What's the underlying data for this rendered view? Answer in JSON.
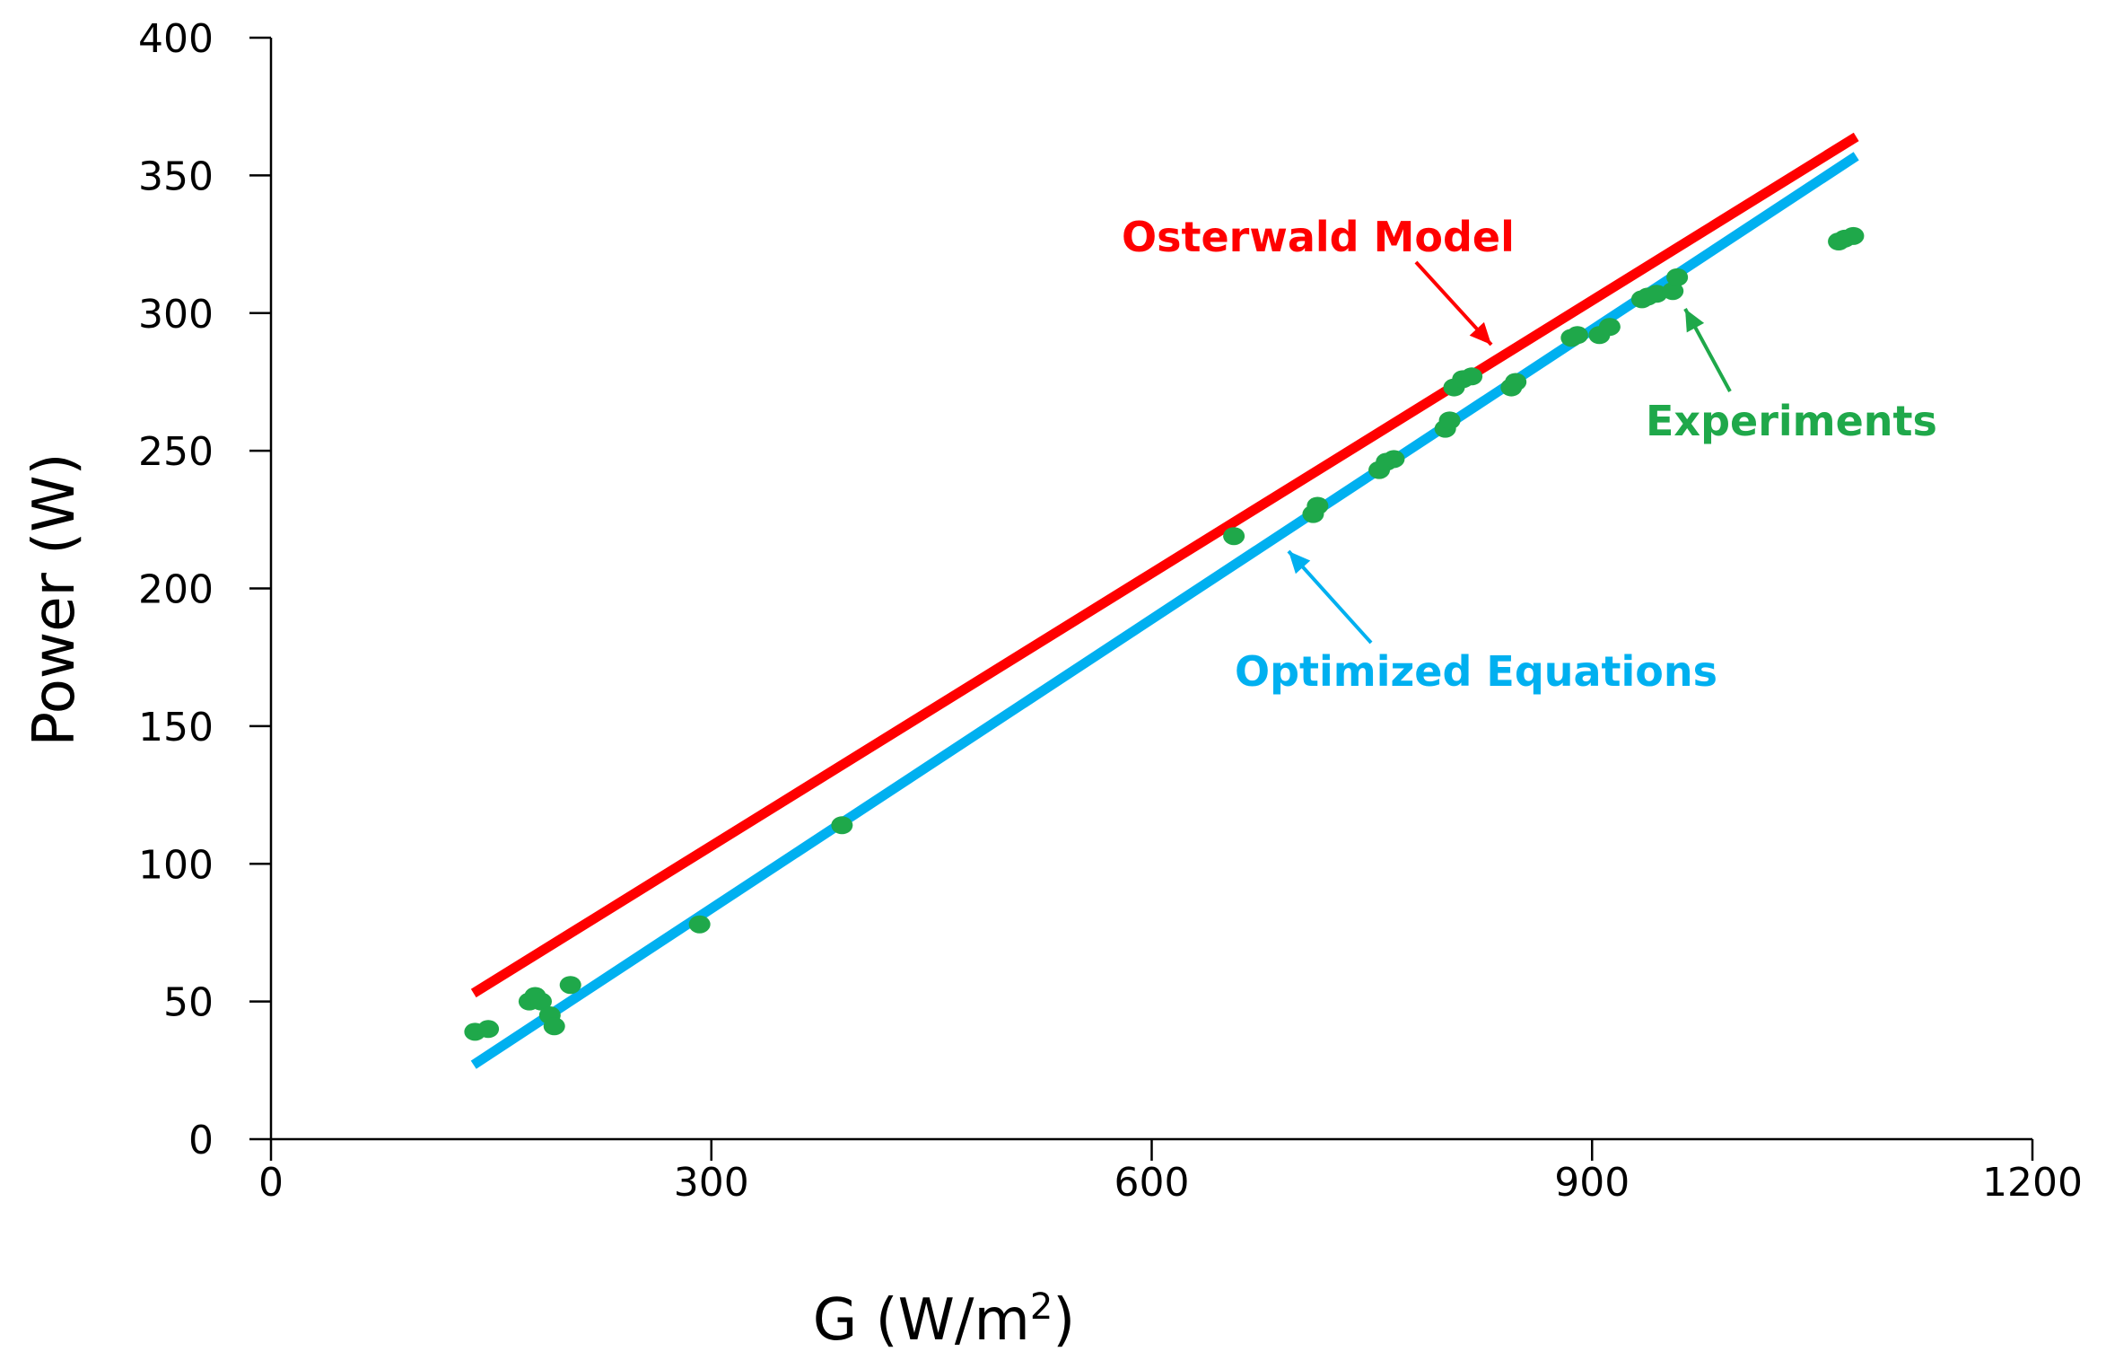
{
  "chart_data": {
    "type": "scatter",
    "title": "",
    "xlabel": "G (W/m",
    "xlabel_sup": "2",
    "xlabel_suffix": ")",
    "ylabel": "Power (W)",
    "xlim": [
      0,
      1200
    ],
    "ylim": [
      0,
      400
    ],
    "x_ticks": [
      0,
      300,
      600,
      900,
      1200
    ],
    "y_ticks": [
      0,
      50,
      100,
      150,
      200,
      250,
      300,
      350,
      400
    ],
    "x_tick_labels": [
      "0",
      "300",
      "600",
      "900",
      "1200"
    ],
    "y_tick_labels": [
      "0",
      "50",
      "100",
      "150",
      "200",
      "250",
      "300",
      "350",
      "400"
    ],
    "grid": false,
    "series": [
      {
        "name": "Osterwald Model",
        "kind": "line",
        "color": "#ff0000",
        "points": [
          [
            138,
            53
          ],
          [
            1080,
            364
          ]
        ]
      },
      {
        "name": "Optimized Equations",
        "kind": "line",
        "color": "#00b0f0",
        "points": [
          [
            138,
            27
          ],
          [
            1080,
            357
          ]
        ]
      },
      {
        "name": "Experiments",
        "kind": "scatter",
        "color": "#1fa84a",
        "points": [
          [
            139,
            39
          ],
          [
            148,
            40
          ],
          [
            176,
            50
          ],
          [
            180,
            52
          ],
          [
            184,
            50
          ],
          [
            190,
            45
          ],
          [
            193,
            41
          ],
          [
            204,
            56
          ],
          [
            292,
            78
          ],
          [
            389,
            114
          ],
          [
            656,
            219
          ],
          [
            710,
            227
          ],
          [
            713,
            230
          ],
          [
            755,
            243
          ],
          [
            760,
            246
          ],
          [
            765,
            247
          ],
          [
            800,
            258
          ],
          [
            803,
            261
          ],
          [
            806,
            273
          ],
          [
            812,
            276
          ],
          [
            818,
            277
          ],
          [
            845,
            273
          ],
          [
            848,
            275
          ],
          [
            886,
            291
          ],
          [
            890,
            292
          ],
          [
            905,
            292
          ],
          [
            912,
            295
          ],
          [
            934,
            305
          ],
          [
            938,
            306
          ],
          [
            944,
            307
          ],
          [
            955,
            308
          ],
          [
            958,
            313
          ],
          [
            1068,
            326
          ],
          [
            1072,
            327
          ],
          [
            1078,
            328
          ]
        ]
      }
    ],
    "annotations": [
      {
        "id": "osterwald",
        "text": "Osterwald Model",
        "color": "#ff0000",
        "arrow_to": [
          830,
          279
        ]
      },
      {
        "id": "optimized",
        "text": "Optimized Equations",
        "color": "#00b0f0",
        "arrow_to": [
          690,
          216
        ]
      },
      {
        "id": "experiments",
        "text": "Experiments",
        "color": "#1fa84a",
        "arrow_to": [
          963,
          303
        ]
      }
    ]
  }
}
